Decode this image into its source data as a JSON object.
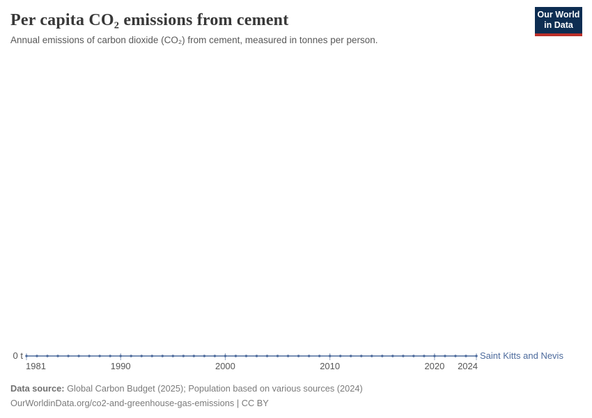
{
  "header": {
    "title": "Per capita CO₂ emissions from cement",
    "subtitle": "Annual emissions of carbon dioxide (CO₂) from cement, measured in tonnes per person."
  },
  "logo": {
    "line1": "Our World",
    "line2": "in Data",
    "background_color": "#0d2d52",
    "accent_color": "#bc2f29"
  },
  "chart_data": {
    "type": "line",
    "title": "Per capita CO₂ emissions from cement",
    "subtitle": "Annual emissions of carbon dioxide (CO₂) from cement, measured in tonnes per person.",
    "xlabel": "",
    "ylabel": "",
    "xlim": [
      1981,
      2024
    ],
    "ylim": [
      0,
      0
    ],
    "grid": false,
    "legend_position": "end-of-line",
    "x": [
      1981,
      1982,
      1983,
      1984,
      1985,
      1986,
      1987,
      1988,
      1989,
      1990,
      1991,
      1992,
      1993,
      1994,
      1995,
      1996,
      1997,
      1998,
      1999,
      2000,
      2001,
      2002,
      2003,
      2004,
      2005,
      2006,
      2007,
      2008,
      2009,
      2010,
      2011,
      2012,
      2013,
      2014,
      2015,
      2016,
      2017,
      2018,
      2019,
      2020,
      2021,
      2022,
      2023,
      2024
    ],
    "series": [
      {
        "name": "Saint Kitts and Nevis",
        "color": "#4c6a9c",
        "values": [
          0,
          0,
          0,
          0,
          0,
          0,
          0,
          0,
          0,
          0,
          0,
          0,
          0,
          0,
          0,
          0,
          0,
          0,
          0,
          0,
          0,
          0,
          0,
          0,
          0,
          0,
          0,
          0,
          0,
          0,
          0,
          0,
          0,
          0,
          0,
          0,
          0,
          0,
          0,
          0,
          0,
          0,
          0,
          0
        ]
      }
    ],
    "x_ticks": [
      1981,
      1990,
      2000,
      2010,
      2020,
      2024
    ],
    "y_ticks": [
      {
        "value": 0,
        "label": "0 t"
      }
    ],
    "axis_style": {
      "tick_color": "#8ea0bf",
      "tick_label_color": "#565656",
      "unit_suffix": "t"
    }
  },
  "footer": {
    "data_source_label": "Data source:",
    "data_source_text": " Global Carbon Budget (2025); Population based on various sources (2024)",
    "url": "OurWorldinData.org/co2-and-greenhouse-gas-emissions",
    "separator": " | ",
    "license": "CC BY"
  }
}
